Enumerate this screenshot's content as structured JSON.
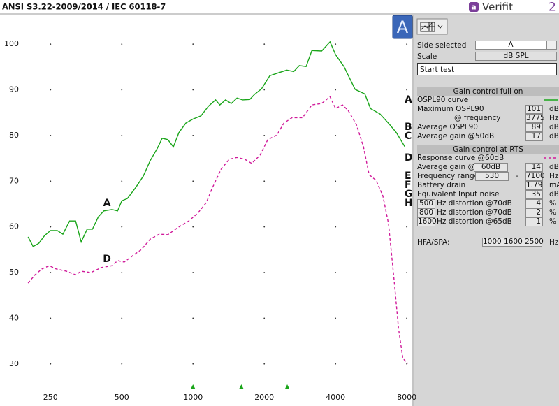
{
  "header": {
    "title": "ANSI S3.22-2009/2014 / IEC 60118-7",
    "logo": "a",
    "brand": "Verifit",
    "version": "2"
  },
  "chart_data": {
    "type": "line",
    "x_scale": "log",
    "xlim": [
      194,
      8440
    ],
    "ylim": [
      24,
      106.6
    ],
    "xticks": [
      250,
      500,
      1000,
      2000,
      4000,
      8000
    ],
    "yticks": [
      30,
      40,
      50,
      60,
      70,
      80,
      90,
      100
    ],
    "grid": "dots",
    "side_button": "A",
    "series": [
      {
        "name": "OSPL90 curve",
        "tag": "A",
        "color": "#1aa51a",
        "dash": "solid",
        "x": [
          201,
          211,
          223,
          236,
          250,
          267,
          282,
          301,
          319,
          337,
          357,
          376,
          398,
          420,
          455,
          480,
          500,
          528,
          574,
          616,
          659,
          707,
          741,
          783,
          826,
          871,
          932,
          1000,
          1080,
          1161,
          1245,
          1298,
          1372,
          1450,
          1534,
          1620,
          1736,
          1818,
          1947,
          2110,
          2290,
          2490,
          2664,
          2813,
          3006,
          3178,
          3495,
          3791,
          4000,
          4340,
          4840,
          5320,
          5620,
          6170,
          6770,
          7240,
          7860
        ],
        "values": [
          57.8,
          55.7,
          56.4,
          58.1,
          59.2,
          59.2,
          58.4,
          61.3,
          61.3,
          56.7,
          59.5,
          59.5,
          62.2,
          63.5,
          63.8,
          63.5,
          65.7,
          66.2,
          68.7,
          71.1,
          74.5,
          77.2,
          79.4,
          79.1,
          77.5,
          80.6,
          82.7,
          83.6,
          84.3,
          86.4,
          87.8,
          86.7,
          87.8,
          87.0,
          88.2,
          87.8,
          87.9,
          89.0,
          90.2,
          93.1,
          93.7,
          94.3,
          94.0,
          95.3,
          95.1,
          98.6,
          98.5,
          100.5,
          97.7,
          95.1,
          90.1,
          89.1,
          85.9,
          84.7,
          82.4,
          80.6,
          77.5
        ]
      },
      {
        "name": "Response curve @60dB",
        "tag": "D",
        "color": "#d01a9a",
        "dash": "dashed",
        "x": [
          201,
          215,
          230,
          247,
          264,
          292,
          319,
          337,
          370,
          410,
          455,
          480,
          512,
          560,
          604,
          659,
          720,
          783,
          866,
          959,
          1048,
          1138,
          1201,
          1313,
          1423,
          1534,
          1654,
          1770,
          1920,
          2069,
          2260,
          2420,
          2620,
          2900,
          3178,
          3495,
          3791,
          4000,
          4280,
          4520,
          4900,
          5250,
          5550,
          5930,
          6340,
          6700,
          7070,
          7380,
          7700,
          8080
        ],
        "values": [
          47.7,
          49.5,
          50.8,
          51.5,
          50.8,
          50.3,
          49.5,
          50.3,
          50.0,
          51.1,
          51.5,
          52.6,
          52.3,
          53.8,
          55.0,
          57.3,
          58.4,
          58.3,
          59.9,
          61.3,
          63.0,
          65.3,
          68.3,
          72.6,
          74.8,
          75.2,
          74.8,
          73.9,
          75.7,
          79.1,
          80.1,
          82.7,
          83.9,
          83.9,
          86.7,
          87.0,
          88.5,
          85.9,
          86.7,
          85.5,
          82.4,
          77.5,
          71.4,
          70.2,
          66.8,
          60.7,
          48.5,
          37.8,
          31.2,
          30.1
        ]
      }
    ]
  },
  "panel": {
    "side_selected": {
      "label": "Side selected",
      "value": "A"
    },
    "scale": {
      "label": "Scale",
      "value": "dB SPL"
    },
    "start_button": "Start test",
    "full_on": {
      "title": "Gain control full on",
      "rows": [
        {
          "label": "Maximum OSPL90",
          "value": 101,
          "unit": "dB"
        },
        {
          "label": "@ frequency",
          "value": 3775,
          "unit": "Hz"
        },
        {
          "tag": "B",
          "label": "Average OSPL90",
          "value": 89,
          "unit": "dB"
        },
        {
          "tag": "C",
          "label": "Average gain @50dB",
          "value": 17,
          "unit": "dB"
        }
      ]
    },
    "rts": {
      "title": "Gain control at RTS",
      "rows": [
        {
          "label": "Average gain @",
          "level": "60dB",
          "value": 14,
          "unit": "dB"
        },
        {
          "tag": "E",
          "label": "Frequency range",
          "low": 530,
          "separator": "-",
          "high": 7100,
          "unit": "Hz"
        },
        {
          "tag": "F",
          "label": "Battery drain",
          "value": 1.79,
          "unit": "mA"
        },
        {
          "tag": "G",
          "label": "Equivalent Input noise",
          "value": 35,
          "unit": "dB"
        },
        {
          "tag": "H",
          "frequency": 500,
          "label": "Hz distortion @70dB",
          "value": 4,
          "unit": "%"
        },
        {
          "frequency": 800,
          "label": "Hz distortion @70dB",
          "value": 2,
          "unit": "%"
        },
        {
          "frequency": 1600,
          "label": "Hz distortion @65dB",
          "value": 1,
          "unit": "%"
        }
      ]
    },
    "hfa": {
      "label": "HFA/SPA:",
      "frequencies": [
        1000,
        1600,
        2500
      ],
      "unit": "Hz"
    }
  }
}
